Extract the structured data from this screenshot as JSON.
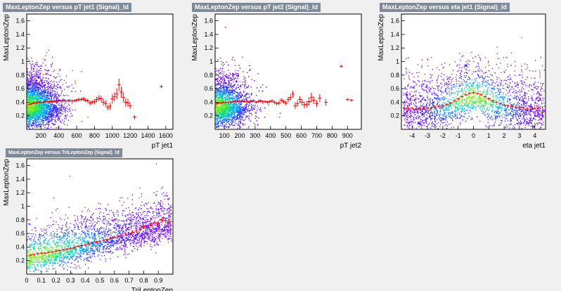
{
  "chart_data": [
    {
      "type": "scatter",
      "title": "MaxLeptonZep versus pT jet1 (Signal)_ld",
      "xlabel": "pT jet1",
      "ylabel": "MaxLeptonZep",
      "xlim": [
        40,
        1680
      ],
      "ylim": [
        0,
        1.7
      ],
      "xticks": [
        200,
        400,
        600,
        800,
        1000,
        1200,
        1400,
        1600
      ],
      "yticks": [
        0.2,
        0.4,
        0.6,
        0.8,
        1,
        1.2,
        1.4,
        1.6
      ],
      "scatter_fill": {
        "x_core": 200,
        "x_spread": 180,
        "x_max": 1200,
        "y_core": 0.35,
        "y_spread": 0.22
      },
      "profile": {
        "x": [
          75,
          100,
          125,
          150,
          175,
          200,
          225,
          250,
          275,
          300,
          325,
          350,
          375,
          400,
          425,
          450,
          475,
          500,
          525,
          550,
          575,
          600,
          625,
          650,
          675,
          700,
          725,
          750,
          775,
          800,
          825,
          850,
          875,
          900,
          925,
          950,
          975,
          1000,
          1025,
          1050,
          1075,
          1100,
          1125,
          1150,
          1175,
          1200,
          1250,
          1550
        ],
        "y": [
          0.37,
          0.38,
          0.39,
          0.39,
          0.4,
          0.4,
          0.4,
          0.41,
          0.41,
          0.41,
          0.41,
          0.41,
          0.42,
          0.42,
          0.42,
          0.42,
          0.42,
          0.42,
          0.42,
          0.42,
          0.42,
          0.43,
          0.44,
          0.44,
          0.45,
          0.43,
          0.42,
          0.39,
          0.4,
          0.41,
          0.44,
          0.46,
          0.45,
          0.4,
          0.38,
          0.32,
          0.34,
          0.45,
          0.48,
          0.52,
          0.66,
          0.55,
          0.47,
          0.4,
          0.39,
          0.35,
          0.18,
          0.63
        ],
        "err": [
          0.005,
          0.005,
          0.005,
          0.005,
          0.005,
          0.005,
          0.005,
          0.005,
          0.005,
          0.005,
          0.006,
          0.006,
          0.007,
          0.007,
          0.008,
          0.008,
          0.009,
          0.01,
          0.01,
          0.012,
          0.012,
          0.014,
          0.015,
          0.016,
          0.018,
          0.02,
          0.02,
          0.025,
          0.025,
          0.03,
          0.03,
          0.035,
          0.04,
          0.04,
          0.04,
          0.03,
          0.04,
          0.06,
          0.06,
          0.07,
          0.08,
          0.07,
          0.06,
          0.05,
          0.05,
          0.04,
          0.02,
          0.01
        ]
      }
    },
    {
      "type": "scatter",
      "title": "MaxLeptonZep versus pT jet2 (Signal)_ld",
      "xlabel": "pT jet2",
      "ylabel": "MaxLeptonZep",
      "xlim": [
        40,
        990
      ],
      "ylim": [
        0,
        1.7
      ],
      "xticks": [
        100,
        200,
        300,
        400,
        500,
        600,
        700,
        800,
        900
      ],
      "yticks": [
        0.2,
        0.4,
        0.6,
        0.8,
        1,
        1.2,
        1.4,
        1.6
      ],
      "scatter_fill": {
        "x_core": 80,
        "x_spread": 110,
        "x_max": 760,
        "y_core": 0.35,
        "y_spread": 0.22
      },
      "profile": {
        "x": [
          50,
          65,
          80,
          95,
          110,
          125,
          140,
          155,
          170,
          185,
          200,
          215,
          230,
          245,
          260,
          275,
          290,
          305,
          320,
          335,
          350,
          365,
          380,
          395,
          410,
          425,
          440,
          455,
          470,
          485,
          500,
          515,
          530,
          545,
          560,
          575,
          590,
          605,
          620,
          635,
          650,
          665,
          680,
          700,
          720,
          760,
          860,
          900,
          925
        ],
        "y": [
          0.38,
          0.39,
          0.39,
          0.4,
          0.4,
          0.4,
          0.4,
          0.41,
          0.41,
          0.41,
          0.42,
          0.42,
          0.41,
          0.41,
          0.4,
          0.41,
          0.42,
          0.4,
          0.41,
          0.42,
          0.41,
          0.41,
          0.4,
          0.41,
          0.42,
          0.4,
          0.38,
          0.39,
          0.43,
          0.41,
          0.39,
          0.44,
          0.47,
          0.52,
          0.35,
          0.38,
          0.44,
          0.4,
          0.36,
          0.37,
          0.41,
          0.47,
          0.43,
          0.38,
          0.46,
          0.4,
          0.93,
          0.44,
          0.43
        ],
        "err": [
          0.004,
          0.004,
          0.004,
          0.004,
          0.004,
          0.004,
          0.005,
          0.005,
          0.005,
          0.005,
          0.006,
          0.006,
          0.006,
          0.007,
          0.007,
          0.008,
          0.008,
          0.009,
          0.01,
          0.01,
          0.011,
          0.012,
          0.013,
          0.014,
          0.015,
          0.016,
          0.018,
          0.02,
          0.02,
          0.022,
          0.025,
          0.03,
          0.035,
          0.04,
          0.04,
          0.035,
          0.04,
          0.04,
          0.04,
          0.04,
          0.05,
          0.06,
          0.05,
          0.04,
          0.05,
          0.04,
          0.01,
          0.01,
          0.01
        ]
      }
    },
    {
      "type": "scatter",
      "title": "MaxLeptonZep versus eta jet1 (Signal)_ld",
      "xlabel": "eta jet1",
      "ylabel": "MaxLeptonZep",
      "xlim": [
        -4.7,
        4.7
      ],
      "ylim": [
        0,
        1.7
      ],
      "xticks": [
        -4,
        -3,
        -2,
        -1,
        0,
        1,
        2,
        3,
        4
      ],
      "yticks": [
        0.2,
        0.4,
        0.6,
        0.8,
        1,
        1.2,
        1.4,
        1.6
      ],
      "scatter_fill": {
        "x_core": 0,
        "x_spread": 2.4,
        "x_max": 4.7,
        "y_core": 0.4,
        "y_spread": 0.25
      },
      "profile": {
        "x": [
          -4.5,
          -4.25,
          -4.0,
          -3.75,
          -3.5,
          -3.25,
          -3.0,
          -2.75,
          -2.5,
          -2.25,
          -2.0,
          -1.75,
          -1.5,
          -1.25,
          -1.0,
          -0.75,
          -0.5,
          -0.25,
          0.0,
          0.25,
          0.5,
          0.75,
          1.0,
          1.25,
          1.5,
          1.75,
          2.0,
          2.25,
          2.5,
          2.75,
          3.0,
          3.25,
          3.5,
          3.75,
          4.0,
          4.25,
          4.5
        ],
        "y": [
          0.31,
          0.31,
          0.31,
          0.3,
          0.31,
          0.31,
          0.31,
          0.32,
          0.33,
          0.34,
          0.35,
          0.37,
          0.39,
          0.42,
          0.45,
          0.48,
          0.51,
          0.53,
          0.54,
          0.53,
          0.51,
          0.48,
          0.45,
          0.42,
          0.4,
          0.38,
          0.36,
          0.35,
          0.34,
          0.33,
          0.32,
          0.32,
          0.31,
          0.3,
          0.31,
          0.32,
          0.25
        ],
        "err": [
          0.02,
          0.015,
          0.01,
          0.01,
          0.008,
          0.008,
          0.007,
          0.007,
          0.006,
          0.006,
          0.006,
          0.006,
          0.006,
          0.006,
          0.006,
          0.006,
          0.006,
          0.006,
          0.006,
          0.006,
          0.006,
          0.006,
          0.006,
          0.006,
          0.006,
          0.006,
          0.006,
          0.006,
          0.006,
          0.007,
          0.007,
          0.008,
          0.008,
          0.01,
          0.01,
          0.015,
          0.03
        ]
      }
    },
    {
      "type": "scatter",
      "title": "MaxLeptonZep versus TriLeptonZep (Signal)_ld",
      "xlabel": "TriLeptonZep",
      "ylabel": "MaxLeptonZep",
      "xlim": [
        0,
        1
      ],
      "ylim": [
        0,
        1.7
      ],
      "xticks": [
        0,
        0.1,
        0.2,
        0.3,
        0.4,
        0.5,
        0.6,
        0.7,
        0.8,
        0.9
      ],
      "yticks": [
        0.2,
        0.4,
        0.6,
        0.8,
        1,
        1.2,
        1.4,
        1.6
      ],
      "scatter_fill": {
        "x_core": 0.15,
        "x_spread": 0.35,
        "x_max": 1.0,
        "y_core": 0.3,
        "y_spread": 0.2
      },
      "profile": {
        "x": [
          0.025,
          0.05,
          0.075,
          0.1,
          0.125,
          0.15,
          0.175,
          0.2,
          0.225,
          0.25,
          0.275,
          0.3,
          0.325,
          0.35,
          0.375,
          0.4,
          0.425,
          0.45,
          0.475,
          0.5,
          0.525,
          0.55,
          0.575,
          0.6,
          0.625,
          0.65,
          0.675,
          0.7,
          0.725,
          0.75,
          0.775,
          0.8,
          0.825,
          0.85,
          0.875,
          0.9,
          0.925,
          0.95,
          0.975
        ],
        "y": [
          0.28,
          0.29,
          0.3,
          0.31,
          0.31,
          0.32,
          0.33,
          0.34,
          0.35,
          0.36,
          0.37,
          0.38,
          0.39,
          0.41,
          0.42,
          0.43,
          0.45,
          0.46,
          0.47,
          0.48,
          0.5,
          0.51,
          0.53,
          0.54,
          0.56,
          0.57,
          0.59,
          0.6,
          0.62,
          0.64,
          0.66,
          0.7,
          0.69,
          0.72,
          0.76,
          0.74,
          0.8,
          0.79,
          0.77
        ],
        "err": [
          0.004,
          0.004,
          0.004,
          0.004,
          0.004,
          0.004,
          0.004,
          0.004,
          0.004,
          0.004,
          0.004,
          0.004,
          0.005,
          0.005,
          0.005,
          0.005,
          0.006,
          0.006,
          0.006,
          0.007,
          0.007,
          0.008,
          0.008,
          0.009,
          0.01,
          0.011,
          0.012,
          0.013,
          0.015,
          0.016,
          0.018,
          0.02,
          0.02,
          0.022,
          0.025,
          0.025,
          0.03,
          0.03,
          0.03
        ]
      }
    }
  ]
}
